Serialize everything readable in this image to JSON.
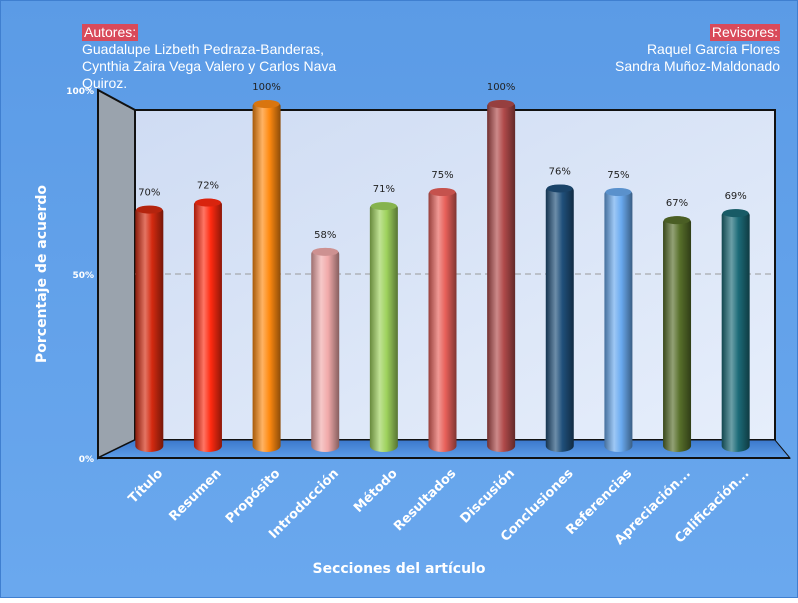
{
  "authors": {
    "title": "Autores:",
    "lines": [
      "Guadalupe Lizbeth Pedraza-Banderas,",
      "Cynthia Zaira Vega Valero y Carlos Nava",
      "Quiroz."
    ]
  },
  "reviewers": {
    "title": "Revisores:",
    "lines": [
      "Raquel García Flores",
      "Sandra Muñoz-Maldonado"
    ]
  },
  "colors": {
    "background": "#5e9ee8",
    "back_wall": "#d4e2f7",
    "side_wall": "#9aa3ad",
    "highlight_label": "#d94a5a",
    "gridline": "#9a9a9a"
  },
  "chart_data": {
    "type": "bar",
    "title": "",
    "xlabel": "Secciones del artículo",
    "ylabel": "Porcentaje de acuerdo",
    "ylim": [
      0,
      100
    ],
    "y_ticks": [
      "0%",
      "50%",
      "100%"
    ],
    "grid": true,
    "legend": "none",
    "categories": [
      "Título",
      "Resumen",
      "Propósito",
      "Introducción",
      "Método",
      "Resultados",
      "Discusión",
      "Conclusiones",
      "Referencias",
      "Apreciación...",
      "Calificación..."
    ],
    "values": [
      70,
      72,
      100,
      58,
      71,
      75,
      100,
      76,
      75,
      67,
      69
    ],
    "value_labels": [
      "70%",
      "72%",
      "100%",
      "58%",
      "71%",
      "75%",
      "100%",
      "76%",
      "75%",
      "67%",
      "69%"
    ],
    "bar_colors": [
      "#d42a10",
      "#ff2a10",
      "#ff8a10",
      "#f1aaaa",
      "#9ed25c",
      "#e8615a",
      "#b04a4a",
      "#1f4f7a",
      "#6aaaf0",
      "#576f2a",
      "#1c6b78"
    ]
  }
}
